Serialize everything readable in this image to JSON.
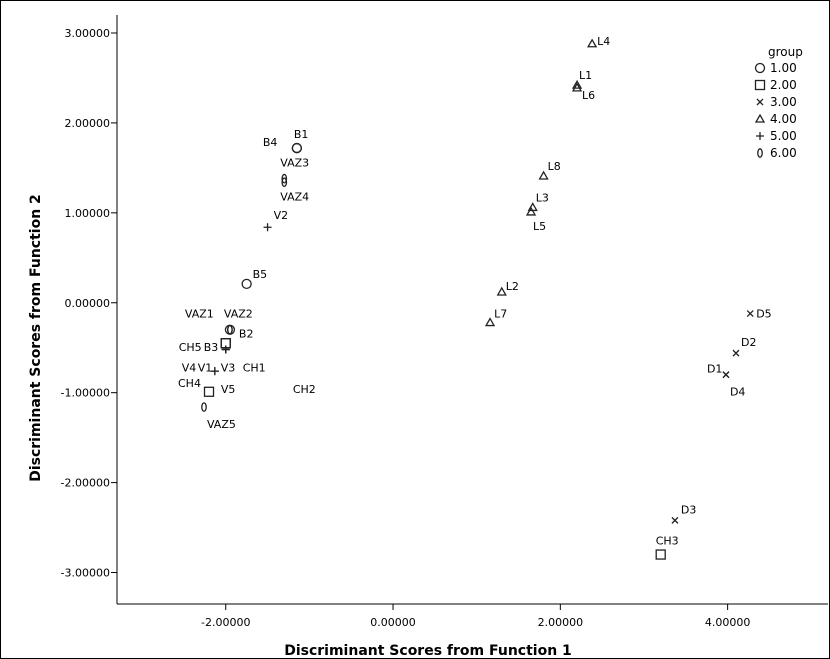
{
  "chart_data": {
    "type": "scatter",
    "xlabel": "Discriminant Scores from Function 1",
    "ylabel": "Discriminant Scores from Function 2",
    "xlim": [
      -3.3,
      5.2
    ],
    "ylim": [
      -3.35,
      3.2
    ],
    "x_ticks": [
      -2,
      0,
      2,
      4
    ],
    "x_tick_labels": [
      "-2.00000",
      "0.00000",
      "2.00000",
      "4.00000"
    ],
    "y_ticks": [
      3,
      2,
      1,
      0,
      -1,
      -2,
      -3
    ],
    "y_tick_labels": [
      "3.00000",
      "2.00000",
      "1.00000",
      "0.00000",
      "-1.00000",
      "-2.00000",
      "-3.00000"
    ],
    "grid": false,
    "legend": {
      "title": "group",
      "placement": "top-right",
      "entries": [
        {
          "marker": "circle",
          "label": "1.00"
        },
        {
          "marker": "square",
          "label": "2.00"
        },
        {
          "marker": "x",
          "label": "3.00"
        },
        {
          "marker": "triangle",
          "label": "4.00"
        },
        {
          "marker": "plus",
          "label": "5.00"
        },
        {
          "marker": "ellipse",
          "label": "6.00"
        }
      ]
    },
    "points": [
      {
        "label": "B1",
        "group": 1,
        "x": -1.15,
        "y": 1.72
      },
      {
        "label": "B4",
        "group": 1,
        "x": -1.15,
        "y": 1.72
      },
      {
        "label": "B5",
        "group": 1,
        "x": -1.75,
        "y": 0.21
      },
      {
        "label": "B2",
        "group": 1,
        "x": -1.95,
        "y": -0.3
      },
      {
        "label": "B3",
        "group": 2,
        "x": -2.0,
        "y": -0.45
      },
      {
        "label": "CH5",
        "group": 2,
        "x": -2.0,
        "y": -0.45
      },
      {
        "label": "CH4",
        "group": 2,
        "x": -2.2,
        "y": -0.99
      },
      {
        "label": "CH3",
        "group": 2,
        "x": 3.2,
        "y": -2.8
      },
      {
        "label": "D5",
        "group": 3,
        "x": 4.27,
        "y": -0.12
      },
      {
        "label": "D2",
        "group": 3,
        "x": 4.1,
        "y": -0.56
      },
      {
        "label": "D1",
        "group": 3,
        "x": 3.98,
        "y": -0.8
      },
      {
        "label": "D4",
        "group": 3,
        "x": 3.98,
        "y": -0.8
      },
      {
        "label": "D3",
        "group": 3,
        "x": 3.37,
        "y": -2.42
      },
      {
        "label": "L4",
        "group": 4,
        "x": 2.38,
        "y": 2.88
      },
      {
        "label": "L1",
        "group": 4,
        "x": 2.2,
        "y": 2.42
      },
      {
        "label": "L6",
        "group": 4,
        "x": 2.2,
        "y": 2.39
      },
      {
        "label": "L8",
        "group": 4,
        "x": 1.8,
        "y": 1.41
      },
      {
        "label": "L3",
        "group": 4,
        "x": 1.67,
        "y": 1.06
      },
      {
        "label": "L5",
        "group": 4,
        "x": 1.65,
        "y": 1.01
      },
      {
        "label": "L2",
        "group": 4,
        "x": 1.3,
        "y": 0.12
      },
      {
        "label": "L7",
        "group": 4,
        "x": 1.16,
        "y": -0.22
      },
      {
        "label": "V2",
        "group": 5,
        "x": -1.5,
        "y": 0.84
      },
      {
        "label": "V3",
        "group": 5,
        "x": -2.0,
        "y": -0.52
      },
      {
        "label": "V4",
        "group": 5,
        "x": -2.0,
        "y": -0.52
      },
      {
        "label": "V1",
        "group": 5,
        "x": -2.0,
        "y": -0.52
      },
      {
        "label": "CH1",
        "group": 5,
        "x": -2.0,
        "y": -0.52
      },
      {
        "label": "V5",
        "group": 5,
        "x": -2.13,
        "y": -0.76
      },
      {
        "label": "CH2",
        "group": 5,
        "x": -2.13,
        "y": -0.76
      },
      {
        "label": "VAZ3",
        "group": 6,
        "x": -1.3,
        "y": 1.38
      },
      {
        "label": "VAZ4",
        "group": 6,
        "x": -1.3,
        "y": 1.34
      },
      {
        "label": "VAZ1",
        "group": 6,
        "x": -1.95,
        "y": -0.3
      },
      {
        "label": "VAZ2",
        "group": 6,
        "x": -1.95,
        "y": -0.3
      },
      {
        "label": "VAZ5",
        "group": 6,
        "x": -2.26,
        "y": -1.16
      }
    ]
  }
}
